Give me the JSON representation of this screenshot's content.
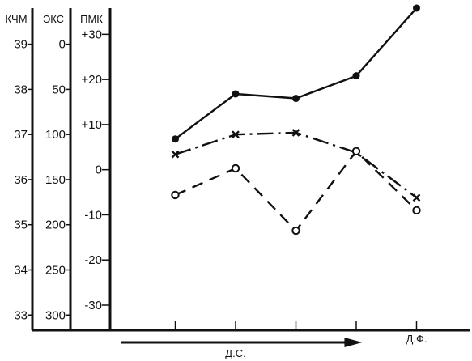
{
  "chart_data": {
    "type": "line",
    "axes": [
      {
        "label": "КЧМ",
        "tick_labels": [
          "39",
          "38",
          "37",
          "36",
          "35",
          "34",
          "33"
        ],
        "ticks": [
          39,
          38,
          37,
          36,
          35,
          34,
          33
        ],
        "ylim": [
          32.7,
          39.8
        ]
      },
      {
        "label": "ЭКС",
        "tick_labels": [
          "0",
          "50",
          "100",
          "150",
          "200",
          "250",
          "300"
        ],
        "ticks": [
          0,
          50,
          100,
          150,
          200,
          250,
          300
        ],
        "ylim": [
          315,
          -40
        ]
      },
      {
        "label": "ПМК",
        "tick_labels": [
          "+30",
          "+20",
          "+10",
          "0",
          "-10",
          "-20",
          "-30"
        ],
        "ticks": [
          30,
          20,
          10,
          0,
          -10,
          -20,
          -30
        ],
        "ylim": [
          -35.2,
          35.8
        ]
      }
    ],
    "x_positions": 5,
    "x_ticks": [
      1,
      2,
      3,
      4,
      5
    ],
    "category_labels": [
      {
        "text": "Д.С.",
        "position": 2
      },
      {
        "text": "Д.Ф.",
        "position": 5
      }
    ],
    "arrow": {
      "from": 0.1,
      "to": 4.1
    },
    "series": [
      {
        "axis": "КЧМ",
        "style": "solid",
        "marker": "filled-circle",
        "values": [
          36.9,
          37.9,
          37.8,
          38.3,
          39.8
        ]
      },
      {
        "axis": "ЭКС",
        "style": "dash-dot",
        "marker": "cross",
        "values": [
          122,
          100,
          98,
          120,
          170
        ]
      },
      {
        "axis": "ПМК",
        "style": "dashed",
        "marker": "open-circle",
        "values": [
          -5.6,
          0.3,
          -13.5,
          4.1,
          -9
        ]
      }
    ],
    "colors": {
      "ink": "#111111",
      "background": "#ffffff"
    }
  }
}
